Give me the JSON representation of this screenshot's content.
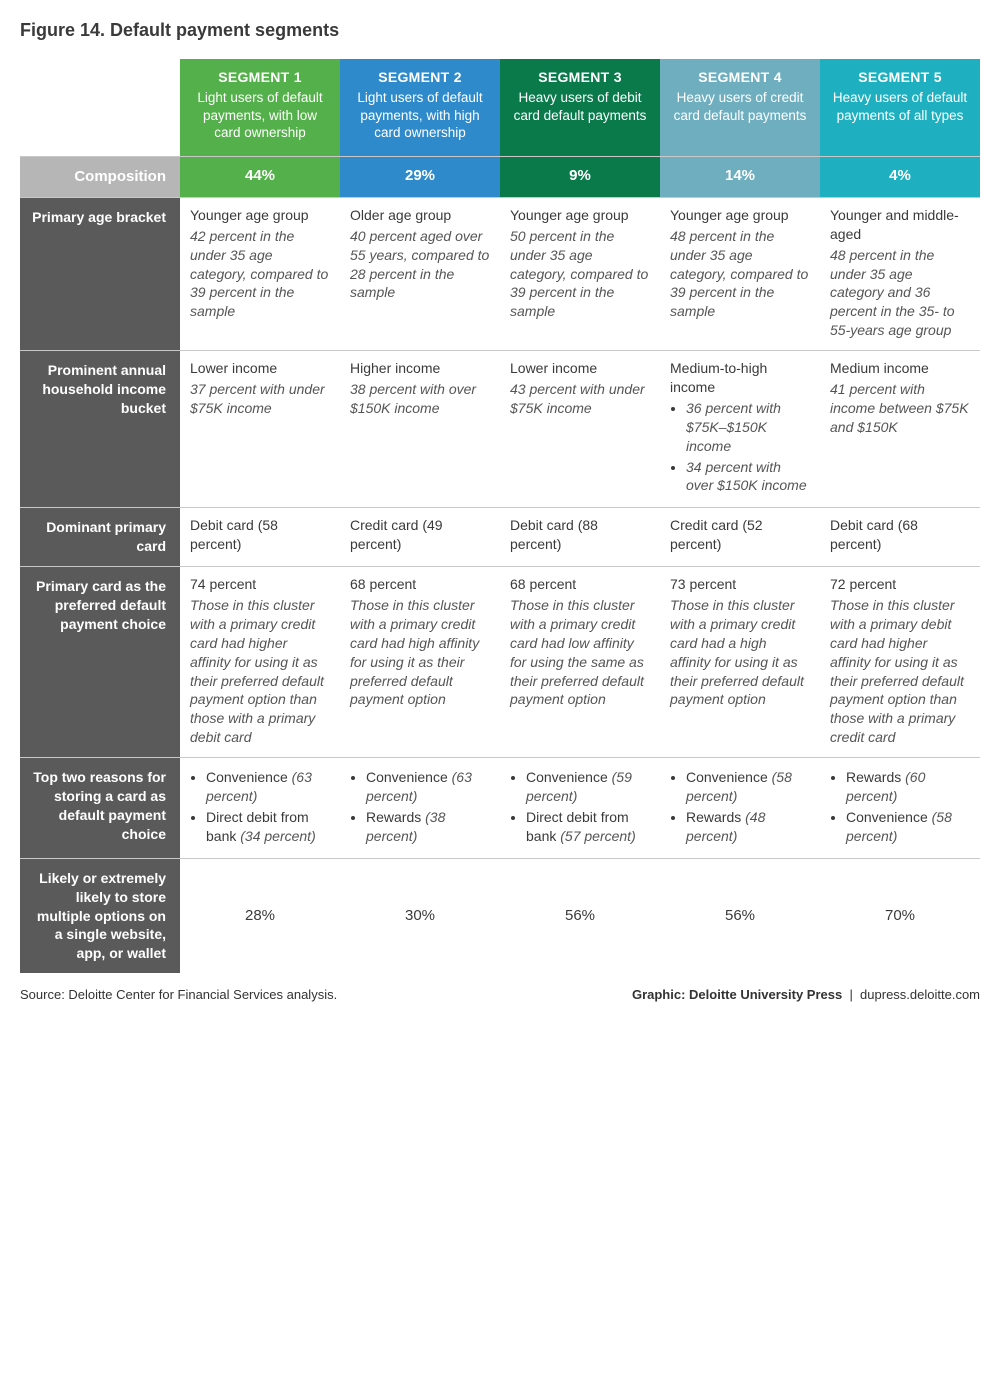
{
  "title": "Figure 14. Default payment segments",
  "colors": {
    "seg1": "#54b04a",
    "seg2": "#2e8aca",
    "seg3": "#0a7a4b",
    "seg4": "#6eaebf",
    "seg5": "#1eb0c0",
    "rowlabel_dark": "#5a5a5a",
    "rowlabel_light": "#b6b6b6",
    "text": "#333333",
    "border": "#c8c8c8"
  },
  "segments": [
    {
      "name": "SEGMENT 1",
      "desc": "Light users of default payments, with low card ownership",
      "color_key": "seg1"
    },
    {
      "name": "SEGMENT 2",
      "desc": "Light users of default payments, with high card ownership",
      "color_key": "seg2"
    },
    {
      "name": "SEGMENT 3",
      "desc": "Heavy users of debit card default payments",
      "color_key": "seg3"
    },
    {
      "name": "SEGMENT 4",
      "desc": "Heavy users of credit card default payments",
      "color_key": "seg4"
    },
    {
      "name": "SEGMENT 5",
      "desc": "Heavy users of default payments of all types",
      "color_key": "seg5"
    }
  ],
  "rows": [
    {
      "key": "composition",
      "label": "Composition",
      "label_bg": "rowlabel_light",
      "type": "composition",
      "values": [
        "44%",
        "29%",
        "9%",
        "14%",
        "4%"
      ]
    },
    {
      "key": "age",
      "label": "Primary age bracket",
      "label_bg": "rowlabel_dark",
      "type": "main_sub",
      "cells": [
        {
          "main": "Younger age group",
          "sub": "42 percent in the under 35 age category, compared to 39 percent in the sample"
        },
        {
          "main": "Older age group",
          "sub": "40 percent aged over 55 years, compared to 28 percent in the sample"
        },
        {
          "main": "Younger age group",
          "sub": "50 percent in the under 35 age category, compared to 39 percent in the sample"
        },
        {
          "main": "Younger age group",
          "sub": "48 percent in the under 35 age category, compared to 39 percent in the sample"
        },
        {
          "main": "Younger and middle-aged",
          "sub": "48 percent in the under 35 age category and 36 percent in the 35- to 55-years age group"
        }
      ]
    },
    {
      "key": "income",
      "label": "Prominent annual household income bucket",
      "label_bg": "rowlabel_dark",
      "type": "income",
      "cells": [
        {
          "main": "Lower income",
          "sub": "37 percent with under $75K income"
        },
        {
          "main": "Higher income",
          "sub": "38 percent with over $150K income"
        },
        {
          "main": "Lower income",
          "sub": "43 percent with under $75K income"
        },
        {
          "main": "Medium-to-high income",
          "bullets_plain": [
            "36 percent with $75K–$150K income",
            "34 percent with over $150K income"
          ]
        },
        {
          "main": "Medium income",
          "sub": "41 percent with income between $75K and $150K"
        }
      ]
    },
    {
      "key": "primary_card",
      "label": "Dominant primary card",
      "label_bg": "rowlabel_dark",
      "type": "plain",
      "cells": [
        {
          "main": "Debit card (58 percent)"
        },
        {
          "main": "Credit card (49 percent)"
        },
        {
          "main": "Debit card (88 percent)"
        },
        {
          "main": "Credit card (52 percent)"
        },
        {
          "main": "Debit card (68 percent)"
        }
      ]
    },
    {
      "key": "preferred",
      "label": "Primary card as the preferred default payment choice",
      "label_bg": "rowlabel_dark",
      "type": "main_sub",
      "cells": [
        {
          "main": "74 percent",
          "sub": "Those in this cluster with a primary credit card had higher affinity for using it as their preferred default payment option than those with a primary debit card"
        },
        {
          "main": "68 percent",
          "sub": "Those in this cluster with a primary credit card had high affinity for using it as their preferred default payment option"
        },
        {
          "main": "68 percent",
          "sub": "Those in this cluster with a primary credit card had low affinity for using the same as their preferred default payment option"
        },
        {
          "main": "73 percent",
          "sub": "Those in this cluster with a primary credit card had a high affinity for using it as their preferred default payment option"
        },
        {
          "main": "72 percent",
          "sub": "Those in this cluster with a primary debit card had higher affinity for using it as their preferred default payment option than those with a primary credit card"
        }
      ]
    },
    {
      "key": "reasons",
      "label": "Top two reasons for storing a card as default payment choice",
      "label_bg": "rowlabel_dark",
      "type": "bullets",
      "cells": [
        {
          "bullets": [
            {
              "t": "Convenience",
              "p": "(63 percent)"
            },
            {
              "t": "Direct debit from bank",
              "p": "(34 percent)"
            }
          ]
        },
        {
          "bullets": [
            {
              "t": "Convenience",
              "p": "(63 percent)"
            },
            {
              "t": "Rewards",
              "p": "(38 percent)"
            }
          ]
        },
        {
          "bullets": [
            {
              "t": "Convenience",
              "p": "(59 percent)"
            },
            {
              "t": "Direct debit from bank",
              "p": "(57 percent)"
            }
          ]
        },
        {
          "bullets": [
            {
              "t": "Convenience",
              "p": "(58 percent)"
            },
            {
              "t": "Rewards",
              "p": "(48 percent)"
            }
          ]
        },
        {
          "bullets": [
            {
              "t": "Rewards",
              "p": "(60 percent)"
            },
            {
              "t": "Convenience",
              "p": "(58 percent)"
            }
          ]
        }
      ]
    },
    {
      "key": "likely",
      "label": "Likely or extremely likely to store multiple options on a single website, app, or wallet",
      "label_bg": "rowlabel_dark",
      "type": "center",
      "values": [
        "28%",
        "30%",
        "56%",
        "56%",
        "70%"
      ]
    }
  ],
  "footer": {
    "source": "Source: Deloitte Center for Financial Services analysis.",
    "graphic_label": "Graphic: Deloitte University Press",
    "url": "dupress.deloitte.com"
  }
}
